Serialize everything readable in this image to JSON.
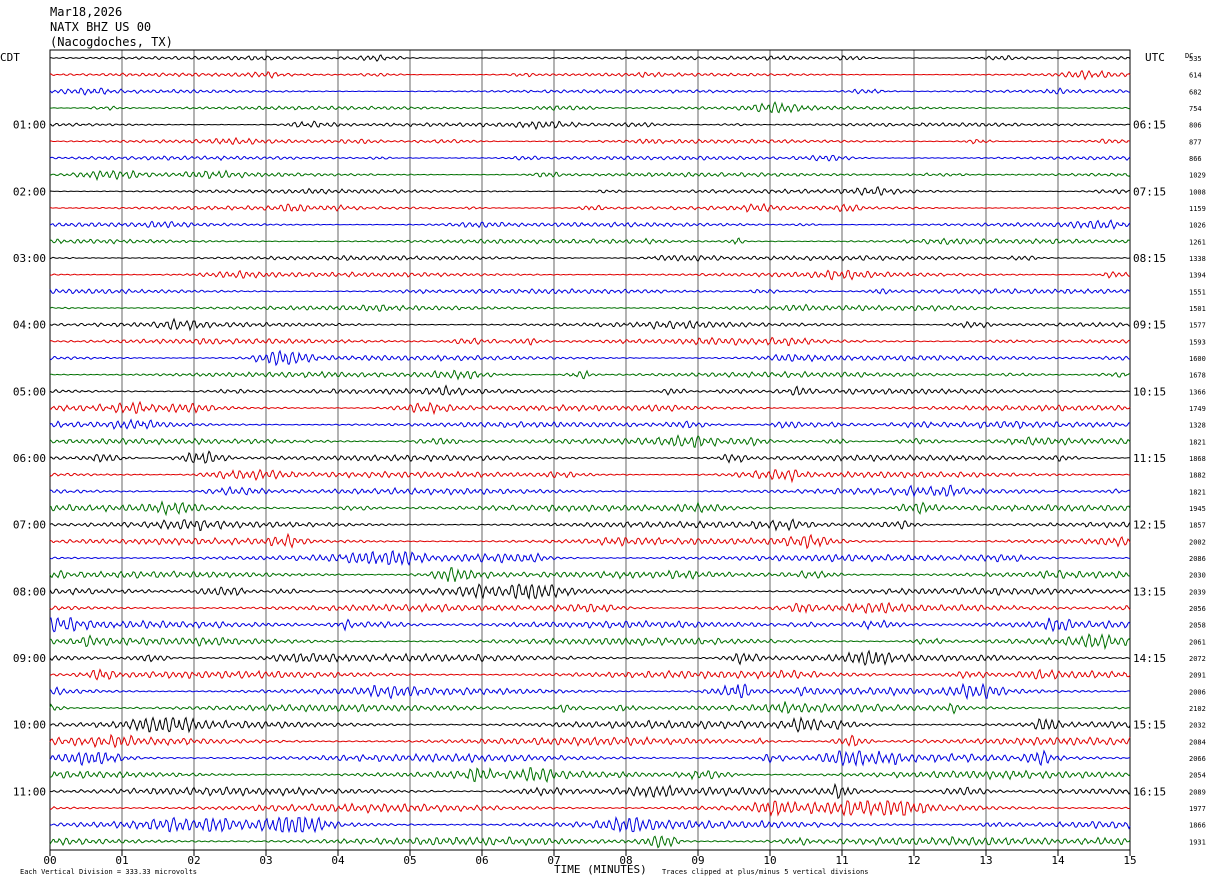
{
  "header": {
    "date": "Mar18,2026",
    "station": "NATX BHZ US 00",
    "location": "(Nacogdoches, TX)"
  },
  "axes": {
    "left_zone": "CDT",
    "right_zone": "UTC",
    "dc_label": "DC",
    "xlabel": "TIME (MINUTES)"
  },
  "footer": {
    "scale_note": "Each Vertical Division =  333.33 microvolts",
    "clip_note": "Traces clipped at plus/minus 5 vertical divisions"
  },
  "colors": {
    "trace_cycle": [
      "#000000",
      "#e00000",
      "#0000e0",
      "#007000"
    ],
    "grid": "#000000"
  },
  "chart_data": {
    "type": "line",
    "subtype": "helicorder",
    "x": {
      "min": 0,
      "max": 15,
      "ticks": [
        "00",
        "01",
        "02",
        "03",
        "04",
        "05",
        "06",
        "07",
        "08",
        "09",
        "10",
        "11",
        "12",
        "13",
        "14",
        "15"
      ]
    },
    "minutes_per_line": 15,
    "line_count": 48,
    "left_time_labels": [
      {
        "line": 4,
        "text": "01:00"
      },
      {
        "line": 8,
        "text": "02:00"
      },
      {
        "line": 12,
        "text": "03:00"
      },
      {
        "line": 16,
        "text": "04:00"
      },
      {
        "line": 20,
        "text": "05:00"
      },
      {
        "line": 24,
        "text": "06:00"
      },
      {
        "line": 28,
        "text": "07:00"
      },
      {
        "line": 32,
        "text": "08:00"
      },
      {
        "line": 36,
        "text": "09:00"
      },
      {
        "line": 40,
        "text": "10:00"
      },
      {
        "line": 44,
        "text": "11:00"
      }
    ],
    "right_time_labels": [
      {
        "line": 4,
        "text": "06:15"
      },
      {
        "line": 8,
        "text": "07:15"
      },
      {
        "line": 12,
        "text": "08:15"
      },
      {
        "line": 16,
        "text": "09:15"
      },
      {
        "line": 20,
        "text": "10:15"
      },
      {
        "line": 24,
        "text": "11:15"
      },
      {
        "line": 28,
        "text": "12:15"
      },
      {
        "line": 32,
        "text": "13:15"
      },
      {
        "line": 36,
        "text": "14:15"
      },
      {
        "line": 40,
        "text": "15:15"
      },
      {
        "line": 44,
        "text": "16:15"
      }
    ],
    "dc_offsets": [
      "535",
      "614",
      "682",
      "754",
      "806",
      "877",
      "866",
      "1029",
      "1008",
      "1159",
      "1026",
      "1261",
      "1338",
      "1394",
      "1551",
      "1501",
      "1577",
      "1593",
      "1600",
      "1678",
      "1366",
      "1749",
      "1328",
      "1821",
      "1868",
      "1882",
      "1821",
      "1945",
      "1857",
      "2002",
      "2086",
      "2030",
      "2039",
      "2056",
      "2058",
      "2061",
      "2072",
      "2091",
      "2006",
      "2102",
      "2032",
      "2084",
      "2066",
      "2054",
      "2089",
      "1977",
      "1866",
      "1931"
    ]
  }
}
